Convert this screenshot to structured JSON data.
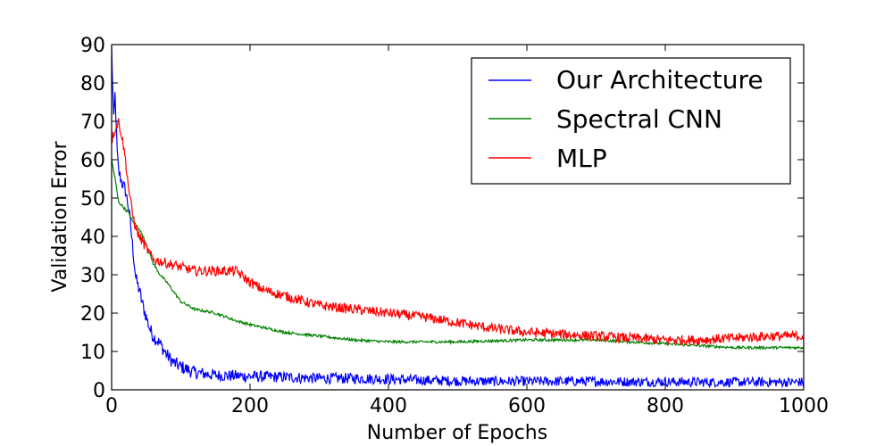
{
  "chart_data": {
    "type": "line",
    "title": "",
    "xlabel": "Number of Epochs",
    "ylabel": "Validation Error",
    "xlim": [
      0,
      1000
    ],
    "ylim": [
      0,
      90
    ],
    "xticks": [
      0,
      200,
      400,
      600,
      800,
      1000
    ],
    "yticks": [
      0,
      10,
      20,
      30,
      40,
      50,
      60,
      70,
      80,
      90
    ],
    "legend_position": "top-right",
    "series": [
      {
        "name": "Our Architecture",
        "color": "#0000ff",
        "x": [
          0,
          3,
          5,
          8,
          10,
          15,
          20,
          25,
          30,
          35,
          40,
          45,
          50,
          55,
          60,
          70,
          80,
          90,
          100,
          120,
          150,
          200,
          250,
          300,
          350,
          400,
          450,
          500,
          550,
          600,
          650,
          700,
          750,
          800,
          850,
          900,
          950,
          1000
        ],
        "y": [
          89,
          70,
          77,
          62,
          57,
          54,
          52,
          47,
          38,
          29,
          26,
          22,
          19,
          16,
          14,
          12,
          9,
          7,
          6,
          4.5,
          3.8,
          3.5,
          3.3,
          3.0,
          3.0,
          2.8,
          2.5,
          2.3,
          2.2,
          2.2,
          2.2,
          2.2,
          2.1,
          2.1,
          2.0,
          2.0,
          2.0,
          2.0
        ]
      },
      {
        "name": "Spectral CNN",
        "color": "#008000",
        "x": [
          0,
          5,
          10,
          15,
          20,
          25,
          30,
          40,
          50,
          60,
          70,
          80,
          100,
          120,
          150,
          180,
          200,
          250,
          300,
          350,
          400,
          500,
          600,
          700,
          750,
          800,
          850,
          900,
          950,
          1000
        ],
        "y": [
          60,
          55,
          49,
          48,
          47,
          46,
          44,
          42,
          38,
          33,
          30,
          28,
          23,
          21,
          20,
          18,
          17,
          15,
          14,
          13,
          12.5,
          12.5,
          13,
          13,
          12.5,
          12,
          11.5,
          11,
          11,
          11
        ]
      },
      {
        "name": "MLP",
        "color": "#ff0000",
        "x": [
          0,
          5,
          10,
          15,
          20,
          25,
          30,
          35,
          40,
          50,
          60,
          70,
          80,
          100,
          120,
          150,
          180,
          200,
          220,
          250,
          300,
          350,
          400,
          450,
          500,
          550,
          600,
          650,
          700,
          750,
          800,
          850,
          900,
          950,
          1000
        ],
        "y": [
          65,
          68,
          70,
          66,
          60,
          52,
          46,
          42,
          40,
          37,
          34,
          33.5,
          33,
          32,
          31,
          31,
          31,
          28,
          26,
          24.5,
          22,
          21,
          20,
          19,
          17.5,
          16,
          15,
          14.5,
          14,
          13.5,
          13,
          13,
          13.5,
          14,
          14
        ]
      }
    ]
  }
}
